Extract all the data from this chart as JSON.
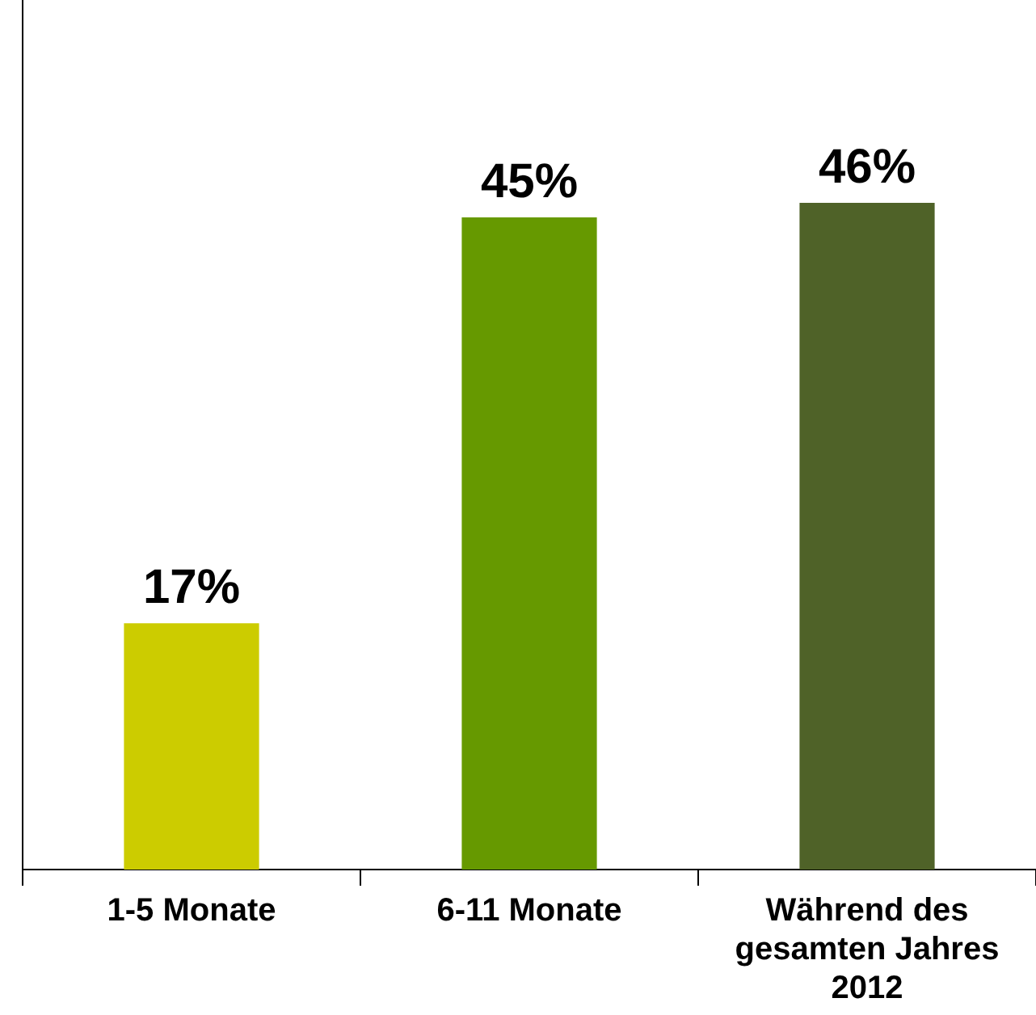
{
  "chart_data": {
    "type": "bar",
    "categories": [
      "1-5 Monate",
      "6-11 Monate",
      "Während des gesamten Jahres 2012"
    ],
    "values": [
      17,
      45,
      46
    ],
    "colors": [
      "#cccc00",
      "#669900",
      "#4f6228"
    ],
    "value_labels": [
      "17%",
      "45%",
      "46%"
    ],
    "grid": false,
    "legend": false,
    "tick_labels": "x"
  }
}
